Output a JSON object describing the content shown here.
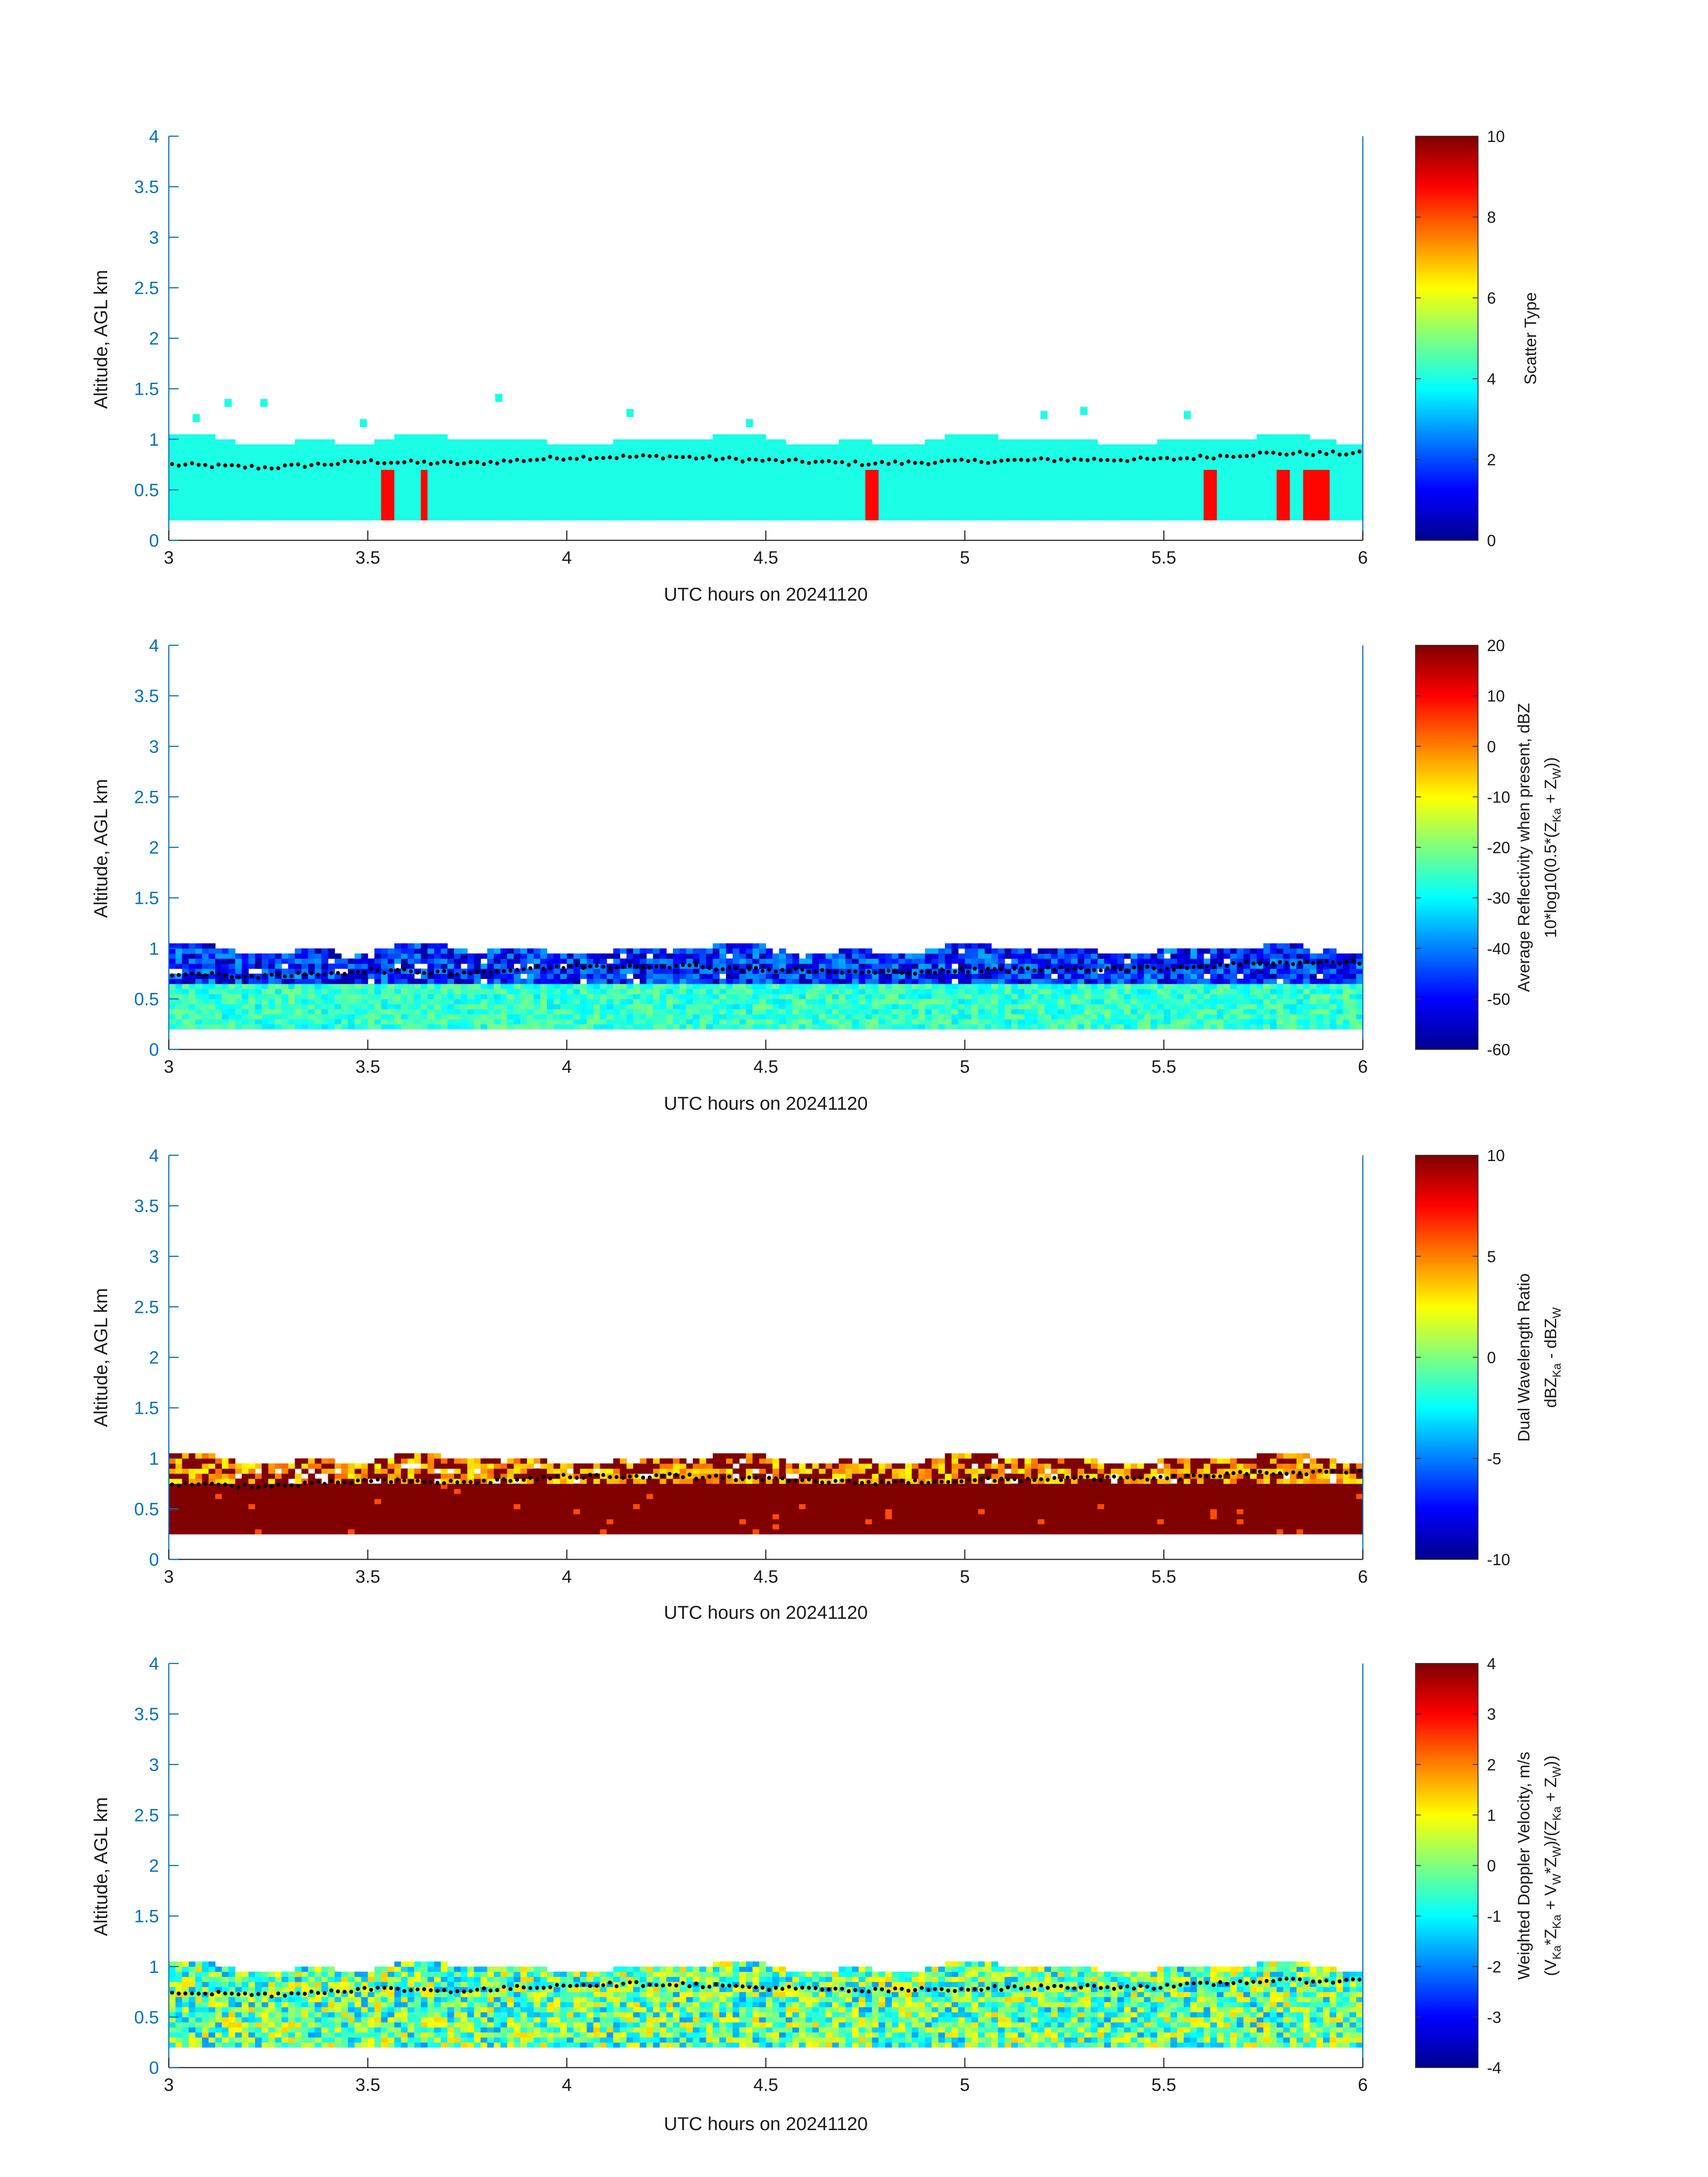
{
  "figure": {
    "panels": [
      {
        "id": "scatter",
        "ylabel": "Altitude, AGL km",
        "xlabel": "UTC hours on 20241120",
        "xticks": [
          "3",
          "3.5",
          "4",
          "4.5",
          "5",
          "5.5",
          "6"
        ],
        "yticks": [
          "0",
          "0.5",
          "1",
          "1.5",
          "2",
          "2.5",
          "3",
          "3.5",
          "4"
        ],
        "colorbar": {
          "ticks": [
            "0",
            "2",
            "4",
            "6",
            "8",
            "10"
          ],
          "label_line1": "Scatter Type",
          "label_line2": ""
        }
      },
      {
        "id": "reflectivity",
        "ylabel": "Altitude, AGL km",
        "xlabel": "UTC hours on 20241120",
        "xticks": [
          "3",
          "3.5",
          "4",
          "4.5",
          "5",
          "5.5",
          "6"
        ],
        "yticks": [
          "0",
          "0.5",
          "1",
          "1.5",
          "2",
          "2.5",
          "3",
          "3.5",
          "4"
        ],
        "colorbar": {
          "ticks": [
            "-60",
            "-50",
            "-40",
            "-30",
            "-20",
            "-10",
            "0",
            "10",
            "20"
          ],
          "label_line1": "Average Reflectivity when present, dBZ",
          "label_line2_a": "10*log10(0.5*(Z",
          "label_line2_sub1": "Ka",
          "label_line2_b": " + Z",
          "label_line2_sub2": "W",
          "label_line2_c": "))"
        }
      },
      {
        "id": "dwr",
        "ylabel": "Altitude, AGL km",
        "xlabel": "UTC hours on 20241120",
        "xticks": [
          "3",
          "3.5",
          "4",
          "4.5",
          "5",
          "5.5",
          "6"
        ],
        "yticks": [
          "0",
          "0.5",
          "1",
          "1.5",
          "2",
          "2.5",
          "3",
          "3.5",
          "4"
        ],
        "colorbar": {
          "ticks": [
            "-10",
            "-5",
            "0",
            "5",
            "10"
          ],
          "label_line1": "Dual Wavelength Ratio",
          "label_line2_a": "dBZ",
          "label_line2_sub1": "Ka",
          "label_line2_b": " - dBZ",
          "label_line2_sub2": "W"
        }
      },
      {
        "id": "doppler",
        "ylabel": "Altitude, AGL km",
        "xlabel": "UTC hours on 20241120",
        "xticks": [
          "3",
          "3.5",
          "4",
          "4.5",
          "5",
          "5.5",
          "6"
        ],
        "yticks": [
          "0",
          "0.5",
          "1",
          "1.5",
          "2",
          "2.5",
          "3",
          "3.5",
          "4"
        ],
        "colorbar": {
          "ticks": [
            "-4",
            "-3",
            "-2",
            "-1",
            "0",
            "1",
            "2",
            "3",
            "4"
          ],
          "label_line1": "Weighted Doppler Velocity, m/s",
          "label_line2_a": "(V",
          "label_line2_sub1": "Ka",
          "label_line2_b": "*Z",
          "label_line2_sub2": "Ka",
          "label_line2_c": " + V",
          "label_line2_sub3": "W",
          "label_line2_d": "*Z",
          "label_line2_sub4": "W",
          "label_line2_e": ")/(Z",
          "label_line2_sub5": "Ka",
          "label_line2_f": " + Z",
          "label_line2_sub6": "W",
          "label_line2_g": "))"
        }
      }
    ]
  },
  "chart_data": [
    {
      "type": "heatmap",
      "title": "",
      "xlabel": "UTC hours on 20241120",
      "ylabel": "Altitude, AGL km",
      "xlim": [
        3,
        6
      ],
      "ylim": [
        0,
        4
      ],
      "colorbar_label": "Scatter Type",
      "clim": [
        0,
        10
      ],
      "colormap": "jet",
      "description_values": {
        "layer_bottom_km": 0.2,
        "layer_top_km_range": [
          0.9,
          1.05
        ],
        "dominant_value": 4,
        "secondary_value": 9,
        "secondary_columns_hours": [
          3.54,
          3.63,
          4.76,
          5.61,
          5.79,
          5.86,
          5.89
        ],
        "isolated_cells": [
          [
            3.06,
            1.25
          ],
          [
            3.14,
            1.4
          ],
          [
            3.23,
            1.4
          ],
          [
            3.48,
            1.2
          ],
          [
            3.82,
            1.45
          ],
          [
            4.15,
            1.3
          ],
          [
            4.45,
            1.2
          ],
          [
            5.19,
            1.28
          ],
          [
            5.29,
            1.32
          ],
          [
            5.55,
            1.28
          ]
        ]
      },
      "overlay_line": {
        "name": "",
        "x": [
          3.0,
          3.25,
          3.5,
          3.75,
          4.0,
          4.25,
          4.5,
          4.75,
          5.0,
          5.25,
          5.5,
          5.75,
          6.0
        ],
        "y": [
          0.75,
          0.72,
          0.78,
          0.76,
          0.82,
          0.83,
          0.79,
          0.76,
          0.78,
          0.8,
          0.8,
          0.86,
          0.86
        ]
      }
    },
    {
      "type": "heatmap",
      "title": "",
      "xlabel": "UTC hours on 20241120",
      "ylabel": "Altitude, AGL km",
      "xlim": [
        3,
        6
      ],
      "ylim": [
        0,
        4
      ],
      "colorbar_label": "Average Reflectivity when present, dBZ 10*log10(0.5*(ZKa + ZW))",
      "clim": [
        -60,
        20
      ],
      "colormap": "jet",
      "description_values": {
        "lower_layer_km": [
          0.2,
          0.65
        ],
        "lower_layer_dbz_range": [
          -32,
          -22
        ],
        "upper_layer_km": [
          0.65,
          1.05
        ],
        "upper_layer_dbz_range": [
          -58,
          -38
        ]
      }
    },
    {
      "type": "heatmap",
      "title": "",
      "xlabel": "UTC hours on 20241120",
      "ylabel": "Altitude, AGL km",
      "xlim": [
        3,
        6
      ],
      "ylim": [
        0,
        4
      ],
      "colorbar_label": "Dual Wavelength Ratio dBZKa - dBZW",
      "clim": [
        -10,
        10
      ],
      "colormap": "jet",
      "description_values": {
        "lower_layer_km": [
          0.25,
          0.75
        ],
        "lower_layer_value": 10,
        "upper_layer_km": [
          0.75,
          1.1
        ],
        "upper_layer_value_range": [
          3,
          10
        ]
      }
    },
    {
      "type": "heatmap",
      "title": "",
      "xlabel": "UTC hours on 20241120",
      "ylabel": "Altitude, AGL km",
      "xlim": [
        3,
        6
      ],
      "ylim": [
        0,
        4
      ],
      "colorbar_label": "Weighted Doppler Velocity, m/s (VKa*ZKa + VW*ZW)/(ZKa + ZW))",
      "clim": [
        -4,
        4
      ],
      "colormap": "jet",
      "description_values": {
        "layer_km": [
          0.2,
          1.05
        ],
        "value_range": [
          -2,
          1.5
        ]
      }
    }
  ],
  "colors": {
    "axis": "#0072bd",
    "text": "#1a1a1a"
  }
}
